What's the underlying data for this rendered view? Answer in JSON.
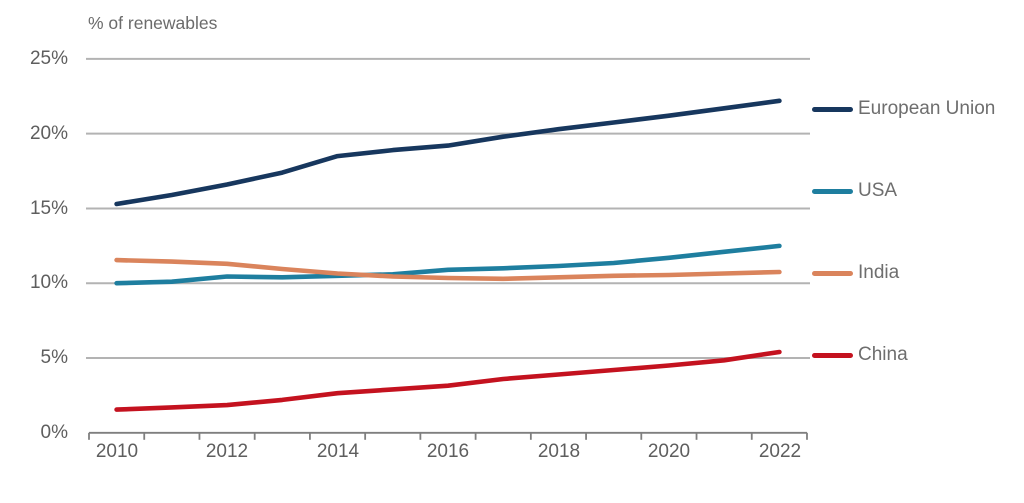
{
  "chart_data": {
    "type": "line",
    "title": "% of renewables",
    "xlabel": "",
    "ylabel": "% of renewables",
    "x": [
      2010,
      2011,
      2012,
      2013,
      2014,
      2015,
      2016,
      2017,
      2018,
      2019,
      2020,
      2021,
      2022
    ],
    "series": [
      {
        "name": "European Union",
        "color": "#17375e",
        "values": [
          15.3,
          15.9,
          16.6,
          17.4,
          18.5,
          18.9,
          19.2,
          19.8,
          20.3,
          20.75,
          21.2,
          21.7,
          22.2
        ]
      },
      {
        "name": "USA",
        "color": "#1e7e9f",
        "values": [
          10.0,
          10.1,
          10.45,
          10.4,
          10.5,
          10.6,
          10.9,
          11.0,
          11.15,
          11.35,
          11.7,
          12.1,
          12.5
        ]
      },
      {
        "name": "India",
        "color": "#da845c",
        "values": [
          11.55,
          11.45,
          11.3,
          10.95,
          10.65,
          10.45,
          10.35,
          10.3,
          10.4,
          10.5,
          10.55,
          10.65,
          10.75
        ]
      },
      {
        "name": "China",
        "color": "#c4121f",
        "values": [
          1.55,
          1.7,
          1.85,
          2.2,
          2.65,
          2.9,
          3.15,
          3.6,
          3.9,
          4.2,
          4.5,
          4.85,
          5.4
        ]
      }
    ],
    "xtick_labels": [
      "2010",
      "2012",
      "2014",
      "2016",
      "2018",
      "2020",
      "2022"
    ],
    "ytick_labels": [
      "25%",
      "20%",
      "15%",
      "10%",
      "5%",
      "0%"
    ],
    "ylim": [
      0,
      25
    ],
    "ytick_step": 5,
    "grid": true,
    "legend_position": "right",
    "colors": {
      "grid": "#b3b3b3",
      "axis": "#7f7f7f",
      "text": "#5e5e5e"
    }
  }
}
